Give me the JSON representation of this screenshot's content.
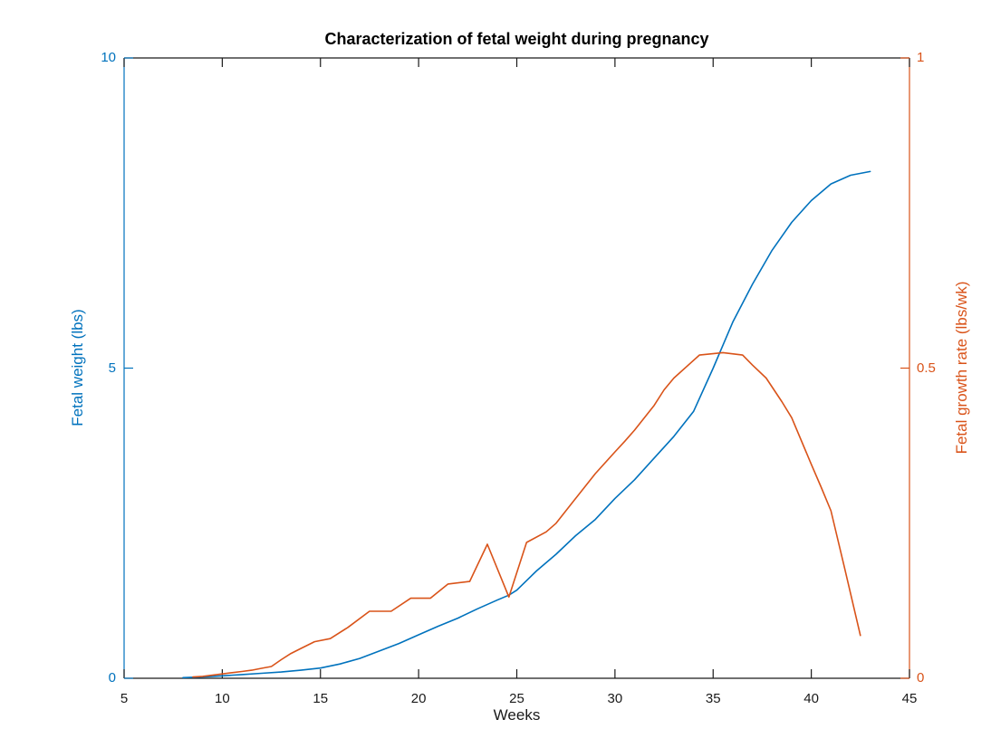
{
  "title": "Characterization of fetal weight during pregnancy",
  "x_axis": {
    "label": "Weeks"
  },
  "left_axis_label": "Fetal weight (lbs)",
  "right_axis_label": "Fetal growth rate (lbs/wk)",
  "colors": {
    "left_accent": "#0072BD",
    "right_accent": "#D95319",
    "axis": "#1a1a1a",
    "background": "#ffffff"
  },
  "chart_data": {
    "type": "line",
    "title": "Characterization of fetal weight during pregnancy",
    "xlabel": "Weeks",
    "x_range": [
      5,
      45
    ],
    "x_ticks": [
      5,
      10,
      15,
      20,
      25,
      30,
      35,
      40,
      45
    ],
    "x_tick_labels": [
      "5",
      "10",
      "15",
      "20",
      "25",
      "30",
      "35",
      "40",
      "45"
    ],
    "grid": false,
    "legend": "none",
    "box": true,
    "left_axis": {
      "label": "Fetal weight (lbs)",
      "range": [
        0,
        10
      ],
      "ticks": [
        0,
        5,
        10
      ],
      "tick_labels": [
        "0",
        "5",
        "10"
      ],
      "color": "#0072BD"
    },
    "right_axis": {
      "label": "Fetal growth rate (lbs/wk)",
      "range": [
        0,
        1
      ],
      "ticks": [
        0,
        0.5,
        1
      ],
      "tick_labels": [
        "0",
        "0.5",
        "1"
      ],
      "color": "#D95319"
    },
    "series": [
      {
        "name": "Fetal weight (lbs)",
        "axis": "left",
        "color": "#0072BD",
        "points": [
          [
            8,
            0.01
          ],
          [
            9,
            0.02
          ],
          [
            10,
            0.04
          ],
          [
            11,
            0.06
          ],
          [
            12,
            0.08
          ],
          [
            13,
            0.1
          ],
          [
            14,
            0.13
          ],
          [
            15,
            0.165
          ],
          [
            16,
            0.23
          ],
          [
            17,
            0.32
          ],
          [
            18,
            0.44
          ],
          [
            19,
            0.56
          ],
          [
            20,
            0.7
          ],
          [
            21,
            0.84
          ],
          [
            22,
            0.97
          ],
          [
            23,
            1.12
          ],
          [
            24,
            1.26
          ],
          [
            24.6,
            1.34
          ],
          [
            25,
            1.42
          ],
          [
            26,
            1.73
          ],
          [
            27,
            2.0
          ],
          [
            28,
            2.3
          ],
          [
            29,
            2.56
          ],
          [
            30,
            2.9
          ],
          [
            31,
            3.2
          ],
          [
            32,
            3.55
          ],
          [
            33,
            3.9
          ],
          [
            34,
            4.3
          ],
          [
            35,
            5.0
          ],
          [
            36,
            5.74
          ],
          [
            37,
            6.35
          ],
          [
            38,
            6.9
          ],
          [
            39,
            7.35
          ],
          [
            40,
            7.7
          ],
          [
            41,
            7.97
          ],
          [
            42,
            8.11
          ],
          [
            43,
            8.17
          ]
        ]
      },
      {
        "name": "Fetal growth rate (lbs/wk)",
        "axis": "right",
        "color": "#D95319",
        "points": [
          [
            8.5,
            0.002
          ],
          [
            9,
            0.003
          ],
          [
            9.5,
            0.005
          ],
          [
            10,
            0.007
          ],
          [
            10.5,
            0.009
          ],
          [
            11,
            0.011
          ],
          [
            11.5,
            0.013
          ],
          [
            12,
            0.016
          ],
          [
            12.5,
            0.019
          ],
          [
            13,
            0.03
          ],
          [
            13.5,
            0.04
          ],
          [
            14,
            0.048
          ],
          [
            14.7,
            0.059
          ],
          [
            15.5,
            0.064
          ],
          [
            16.4,
            0.082
          ],
          [
            17.5,
            0.108
          ],
          [
            18.6,
            0.108
          ],
          [
            19.6,
            0.129
          ],
          [
            20.6,
            0.129
          ],
          [
            21.5,
            0.152
          ],
          [
            22.6,
            0.156
          ],
          [
            23.5,
            0.216
          ],
          [
            24.6,
            0.131
          ],
          [
            25.5,
            0.219
          ],
          [
            26.5,
            0.236
          ],
          [
            27,
            0.25
          ],
          [
            28,
            0.29
          ],
          [
            29,
            0.33
          ],
          [
            30,
            0.365
          ],
          [
            30.5,
            0.382
          ],
          [
            31,
            0.4
          ],
          [
            32,
            0.44
          ],
          [
            32.5,
            0.465
          ],
          [
            33,
            0.484
          ],
          [
            34.3,
            0.521
          ],
          [
            35.5,
            0.525
          ],
          [
            36.5,
            0.521
          ],
          [
            37,
            0.505
          ],
          [
            37.7,
            0.484
          ],
          [
            38.5,
            0.446
          ],
          [
            39,
            0.42
          ],
          [
            40,
            0.345
          ],
          [
            40.5,
            0.308
          ],
          [
            41,
            0.27
          ],
          [
            41.7,
            0.177
          ],
          [
            42.5,
            0.069
          ]
        ]
      }
    ]
  }
}
